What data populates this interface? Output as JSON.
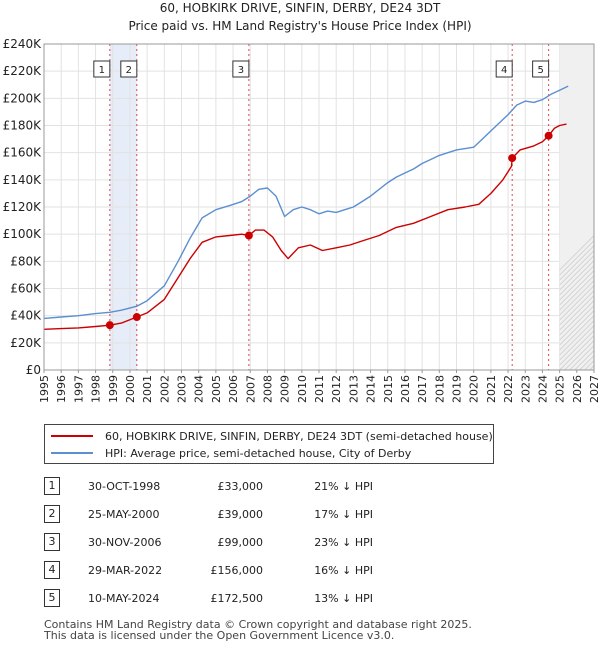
{
  "chart_data": {
    "type": "line",
    "title": "60, HOBKIRK DRIVE, SINFIN, DERBY, DE24 3DT",
    "subtitle": "Price paid vs. HM Land Registry's House Price Index (HPI)",
    "xlim": [
      1995,
      2027
    ],
    "ylim": [
      0,
      240000
    ],
    "x_ticks": [
      "1995",
      "1996",
      "1997",
      "1998",
      "1999",
      "2000",
      "2001",
      "2002",
      "2003",
      "2004",
      "2005",
      "2006",
      "2007",
      "2008",
      "2009",
      "2010",
      "2011",
      "2012",
      "2013",
      "2014",
      "2015",
      "2016",
      "2017",
      "2018",
      "2019",
      "2020",
      "2021",
      "2022",
      "2023",
      "2024",
      "2025",
      "2026",
      "2027"
    ],
    "y_ticks": [
      {
        "value": 0,
        "label": "£0"
      },
      {
        "value": 20000,
        "label": "£20K"
      },
      {
        "value": 40000,
        "label": "£40K"
      },
      {
        "value": 60000,
        "label": "£60K"
      },
      {
        "value": 80000,
        "label": "£80K"
      },
      {
        "value": 100000,
        "label": "£100K"
      },
      {
        "value": 120000,
        "label": "£120K"
      },
      {
        "value": 140000,
        "label": "£140K"
      },
      {
        "value": 160000,
        "label": "£160K"
      },
      {
        "value": 180000,
        "label": "£180K"
      },
      {
        "value": 200000,
        "label": "£200K"
      },
      {
        "value": 220000,
        "label": "£220K"
      },
      {
        "value": 240000,
        "label": "£240K"
      }
    ],
    "series": [
      {
        "name": "60, HOBKIRK DRIVE, SINFIN, DERBY, DE24 3DT (semi-detached house)",
        "color": "#cc0000",
        "x": [
          1995.0,
          1996.0,
          1997.0,
          1998.0,
          1998.83,
          1999.5,
          2000.4,
          2001.0,
          2002.0,
          2002.8,
          2003.5,
          2004.2,
          2005.0,
          2005.8,
          2006.5,
          2006.92,
          2007.3,
          2007.8,
          2008.3,
          2008.8,
          2009.2,
          2009.8,
          2010.5,
          2011.2,
          2012.0,
          2012.8,
          2013.5,
          2014.5,
          2015.5,
          2016.5,
          2017.5,
          2018.5,
          2019.5,
          2020.3,
          2021.0,
          2021.7,
          2022.2,
          2022.24,
          2022.7,
          2023.5,
          2024.0,
          2024.36,
          2024.7,
          2025.0,
          2025.4
        ],
        "values": [
          30000,
          30500,
          31000,
          32000,
          33000,
          34500,
          39000,
          42000,
          52000,
          68000,
          82000,
          94000,
          98000,
          99000,
          100000,
          99000,
          103000,
          103000,
          98000,
          88000,
          82000,
          90000,
          92000,
          88000,
          90000,
          92000,
          95000,
          99000,
          105000,
          108000,
          113000,
          118000,
          120000,
          122000,
          130000,
          140000,
          150000,
          156000,
          162000,
          165000,
          168000,
          172500,
          178000,
          180000,
          181000
        ]
      },
      {
        "name": "HPI: Average price, semi-detached house, City of Derby",
        "color": "#5b8fcf",
        "x": [
          1995.0,
          1996.0,
          1997.0,
          1998.0,
          1998.83,
          1999.5,
          2000.4,
          2001.0,
          2002.0,
          2002.8,
          2003.5,
          2004.2,
          2005.0,
          2005.8,
          2006.5,
          2007.0,
          2007.5,
          2008.0,
          2008.5,
          2009.0,
          2009.5,
          2010.0,
          2010.5,
          2011.0,
          2011.5,
          2012.0,
          2012.5,
          2013.0,
          2013.5,
          2014.0,
          2014.5,
          2015.0,
          2015.5,
          2016.0,
          2016.5,
          2017.0,
          2017.5,
          2018.0,
          2018.5,
          2019.0,
          2019.5,
          2020.0,
          2020.5,
          2021.0,
          2021.5,
          2022.0,
          2022.5,
          2023.0,
          2023.5,
          2024.0,
          2024.5,
          2025.0,
          2025.5
        ],
        "values": [
          38000,
          39000,
          40000,
          41500,
          42500,
          44000,
          47000,
          51000,
          62000,
          80000,
          97000,
          112000,
          118000,
          121000,
          124000,
          128000,
          133000,
          134000,
          128000,
          113000,
          118000,
          120000,
          118000,
          115000,
          117000,
          116000,
          118000,
          120000,
          124000,
          128000,
          133000,
          138000,
          142000,
          145000,
          148000,
          152000,
          155000,
          158000,
          160000,
          162000,
          163000,
          164000,
          170000,
          176000,
          182000,
          188000,
          195000,
          198000,
          197000,
          199000,
          203000,
          206000,
          209000
        ]
      }
    ],
    "transactions": [
      {
        "num": "1",
        "x": 1998.83,
        "price": 33000,
        "date": "30-OCT-1998",
        "price_label": "£33,000",
        "hpi_label": "21% ↓ HPI"
      },
      {
        "num": "2",
        "x": 2000.4,
        "price": 39000,
        "date": "25-MAY-2000",
        "price_label": "£39,000",
        "hpi_label": "17% ↓ HPI"
      },
      {
        "num": "3",
        "x": 2006.92,
        "price": 99000,
        "date": "30-NOV-2006",
        "price_label": "£99,000",
        "hpi_label": "23% ↓ HPI"
      },
      {
        "num": "4",
        "x": 2022.24,
        "price": 156000,
        "date": "29-MAR-2022",
        "price_label": "£156,000",
        "hpi_label": "16% ↓ HPI"
      },
      {
        "num": "5",
        "x": 2024.36,
        "price": 172500,
        "date": "10-MAY-2024",
        "price_label": "£172,500",
        "hpi_label": "13% ↓ HPI"
      }
    ],
    "hatch_from": 2025.0
  },
  "legend": {
    "property_label": "60, HOBKIRK DRIVE, SINFIN, DERBY, DE24 3DT (semi-detached house)",
    "hpi_label": "HPI: Average price, semi-detached house, City of Derby",
    "property_color": "#cc0000",
    "hpi_color": "#5b8fcf"
  },
  "footer": {
    "line1": "Contains HM Land Registry data © Crown copyright and database right 2025.",
    "line2": "This data is licensed under the Open Government Licence v3.0."
  }
}
